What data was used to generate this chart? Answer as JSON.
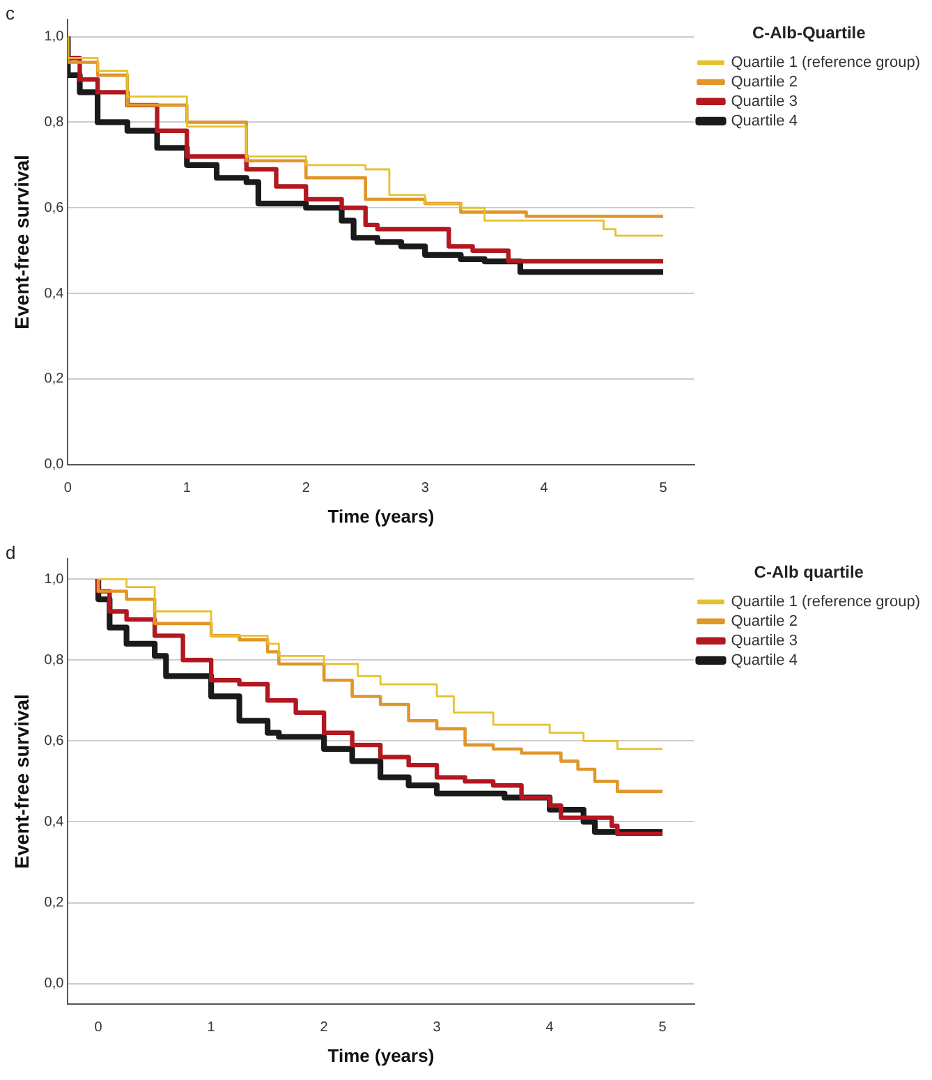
{
  "chart_data": [
    {
      "type": "step",
      "xlabel": "Time (years)",
      "ylabel": "Event-free survival",
      "legend_title": "C-Alb-Quartile",
      "annotations": [
        "c"
      ],
      "xlim": [
        0,
        5.26
      ],
      "xticks": [
        0,
        1,
        2,
        3,
        4,
        5
      ],
      "ylim": [
        0,
        1.04
      ],
      "yticks": [
        {
          "value": 0,
          "label": "0,0"
        },
        {
          "value": 0.2,
          "label": "0,2"
        },
        {
          "value": 0.4,
          "label": "0,4"
        },
        {
          "value": 0.6,
          "label": "0,6"
        },
        {
          "value": 0.8,
          "label": "0,8"
        },
        {
          "value": 1,
          "label": "1,0"
        }
      ],
      "grid": "y",
      "legend": "top right",
      "line_style": "solid",
      "series": [
        {
          "name": "Quartile 1 (reference group)",
          "color": "#e6c12c",
          "x": [
            0,
            0.25,
            0.5,
            1,
            1.5,
            2,
            2.5,
            2.7,
            3,
            3.3,
            3.5,
            3.8,
            4.5,
            4.6,
            4.9,
            5
          ],
          "values": [
            1.0,
            0.95,
            0.92,
            0.86,
            0.79,
            0.72,
            0.7,
            0.69,
            0.63,
            0.61,
            0.6,
            0.57,
            0.57,
            0.55,
            0.535,
            0.535
          ]
        },
        {
          "name": "Quartile 2",
          "color": "#e0962a",
          "x": [
            0,
            0.25,
            0.5,
            1,
            1.5,
            2,
            2.5,
            3,
            3.3,
            3.85,
            4.55,
            5
          ],
          "values": [
            1.0,
            0.94,
            0.91,
            0.84,
            0.8,
            0.71,
            0.67,
            0.62,
            0.61,
            0.59,
            0.58,
            0.58
          ]
        },
        {
          "name": "Quartile 3",
          "color": "#b3171f",
          "x": [
            0,
            0.1,
            0.25,
            0.5,
            0.75,
            1,
            1.5,
            1.75,
            2,
            2.3,
            2.5,
            2.6,
            3.2,
            3.4,
            3.7,
            4.55,
            5
          ],
          "values": [
            1.0,
            0.95,
            0.9,
            0.87,
            0.84,
            0.78,
            0.72,
            0.69,
            0.65,
            0.62,
            0.6,
            0.56,
            0.55,
            0.51,
            0.5,
            0.475,
            0.475
          ]
        },
        {
          "name": "Quartile 4",
          "color": "#1a1a1a",
          "x": [
            0,
            0.1,
            0.25,
            0.5,
            0.75,
            1,
            1.25,
            1.5,
            1.6,
            2,
            2.3,
            2.4,
            2.6,
            2.8,
            3,
            3.3,
            3.5,
            3.8,
            4.8,
            5
          ],
          "values": [
            1.0,
            0.91,
            0.87,
            0.8,
            0.78,
            0.74,
            0.7,
            0.67,
            0.66,
            0.61,
            0.6,
            0.57,
            0.53,
            0.52,
            0.51,
            0.49,
            0.48,
            0.475,
            0.45,
            0.45
          ]
        }
      ]
    },
    {
      "type": "step",
      "xlabel": "Time (years)",
      "ylabel": "Event-free survival",
      "legend_title": "C-Alb quartile",
      "annotations": [
        "d"
      ],
      "xlim": [
        -0.27,
        5.28
      ],
      "xticks": [
        0,
        1,
        2,
        3,
        4,
        5
      ],
      "ylim": [
        -0.05,
        1.05
      ],
      "yticks": [
        {
          "value": 0,
          "label": "0,0"
        },
        {
          "value": 0.2,
          "label": "0,2"
        },
        {
          "value": 0.4,
          "label": "0,4"
        },
        {
          "value": 0.6,
          "label": "0,6"
        },
        {
          "value": 0.8,
          "label": "0,8"
        },
        {
          "value": 1,
          "label": "1,0"
        }
      ],
      "grid": "y",
      "legend": "top right",
      "line_style": "solid",
      "series": [
        {
          "name": "Quartile 1 (reference group)",
          "color": "#e6c12c",
          "x": [
            0,
            0.25,
            0.5,
            1,
            1.5,
            1.6,
            2,
            2.3,
            2.5,
            3,
            3.15,
            3.5,
            4,
            4.3,
            4.6,
            4.9,
            5
          ],
          "values": [
            1.0,
            1.0,
            0.98,
            0.92,
            0.86,
            0.84,
            0.81,
            0.79,
            0.76,
            0.74,
            0.71,
            0.67,
            0.64,
            0.62,
            0.6,
            0.58,
            0.58
          ]
        },
        {
          "name": "Quartile 2",
          "color": "#e0962a",
          "x": [
            0,
            0.25,
            0.5,
            1,
            1.25,
            1.5,
            1.6,
            2,
            2.25,
            2.5,
            2.75,
            3,
            3.25,
            3.5,
            3.75,
            4.1,
            4.25,
            4.4,
            4.6,
            4.65,
            5
          ],
          "values": [
            1.0,
            0.97,
            0.95,
            0.89,
            0.86,
            0.85,
            0.82,
            0.79,
            0.75,
            0.71,
            0.69,
            0.65,
            0.63,
            0.59,
            0.58,
            0.57,
            0.55,
            0.53,
            0.5,
            0.475,
            0.475
          ]
        },
        {
          "name": "Quartile 3",
          "color": "#b3171f",
          "x": [
            0,
            0.1,
            0.25,
            0.5,
            0.75,
            1,
            1.25,
            1.5,
            1.75,
            2,
            2.25,
            2.5,
            2.75,
            3,
            3.25,
            3.5,
            3.75,
            4,
            4.1,
            4.55,
            4.6,
            4.95,
            5
          ],
          "values": [
            1.0,
            0.97,
            0.92,
            0.9,
            0.86,
            0.8,
            0.75,
            0.74,
            0.7,
            0.67,
            0.62,
            0.59,
            0.56,
            0.54,
            0.51,
            0.5,
            0.49,
            0.46,
            0.44,
            0.41,
            0.39,
            0.37,
            0.37
          ]
        },
        {
          "name": "Quartile 4",
          "color": "#1a1a1a",
          "x": [
            0,
            0.1,
            0.25,
            0.5,
            0.6,
            1,
            1.25,
            1.5,
            1.6,
            2,
            2.25,
            2.5,
            2.75,
            3,
            3.6,
            4,
            4.3,
            4.4,
            4.45,
            5
          ],
          "values": [
            1.0,
            0.95,
            0.88,
            0.84,
            0.81,
            0.76,
            0.71,
            0.65,
            0.62,
            0.61,
            0.58,
            0.55,
            0.51,
            0.49,
            0.47,
            0.46,
            0.43,
            0.4,
            0.375,
            0.375
          ]
        }
      ]
    }
  ]
}
